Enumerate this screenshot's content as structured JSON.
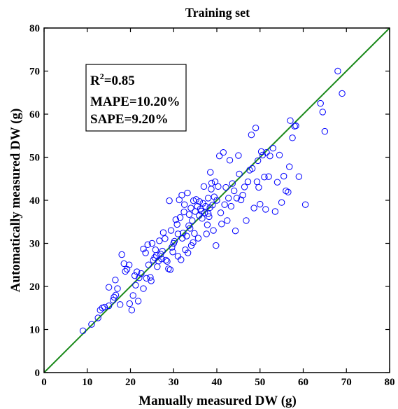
{
  "chart_data": {
    "type": "scatter",
    "title": "Training set",
    "xlabel": "Manually measured DW (g)",
    "ylabel": "Automatically measured DW (g)",
    "xlim": [
      0,
      80
    ],
    "ylim": [
      0,
      80
    ],
    "xticks": [
      "0",
      "10",
      "20",
      "30",
      "40",
      "50",
      "60",
      "70",
      "80"
    ],
    "yticks": [
      "0",
      "10",
      "20",
      "30",
      "40",
      "50",
      "60",
      "70",
      "80"
    ],
    "grid": false,
    "annotations": {
      "r2_prefix": "R",
      "r2_sup": "2",
      "r2_value": "=0.85",
      "mape": "MAPE=10.20%",
      "sape": "SAPE=9.20%"
    },
    "reference_line": {
      "x": [
        0,
        80
      ],
      "y": [
        0,
        80
      ]
    },
    "series": [
      {
        "marker": "circle",
        "points": [
          [
            9.0,
            9.7
          ],
          [
            11.0,
            11.2
          ],
          [
            12.5,
            12.7
          ],
          [
            13.0,
            14.5
          ],
          [
            13.5,
            15.0
          ],
          [
            14.0,
            15.2
          ],
          [
            15.0,
            15.5
          ],
          [
            15.0,
            19.8
          ],
          [
            16.0,
            16.8
          ],
          [
            16.2,
            17.5
          ],
          [
            16.6,
            18.0
          ],
          [
            16.5,
            21.5
          ],
          [
            17.0,
            19.5
          ],
          [
            17.6,
            15.8
          ],
          [
            18.0,
            27.4
          ],
          [
            18.5,
            25.3
          ],
          [
            18.8,
            23.5
          ],
          [
            19.2,
            24.0
          ],
          [
            19.7,
            25.0
          ],
          [
            19.8,
            16.0
          ],
          [
            20.3,
            14.5
          ],
          [
            20.6,
            17.9
          ],
          [
            21.0,
            22.5
          ],
          [
            21.5,
            23.4
          ],
          [
            21.2,
            20.3
          ],
          [
            21.8,
            16.6
          ],
          [
            22.0,
            22.0
          ],
          [
            22.5,
            23.0
          ],
          [
            23.0,
            19.5
          ],
          [
            23.0,
            28.7
          ],
          [
            23.5,
            27.8
          ],
          [
            23.7,
            21.9
          ],
          [
            24.0,
            29.7
          ],
          [
            24.2,
            25.0
          ],
          [
            24.6,
            22.1
          ],
          [
            24.8,
            21.3
          ],
          [
            25.0,
            30.0
          ],
          [
            25.3,
            26.1
          ],
          [
            25.6,
            26.7
          ],
          [
            25.8,
            28.5
          ],
          [
            26.0,
            27.2
          ],
          [
            26.2,
            24.6
          ],
          [
            26.5,
            25.9
          ],
          [
            26.7,
            30.6
          ],
          [
            27.0,
            27.5
          ],
          [
            27.2,
            26.4
          ],
          [
            27.4,
            28.2
          ],
          [
            27.6,
            32.5
          ],
          [
            28.0,
            31.1
          ],
          [
            28.2,
            26.1
          ],
          [
            28.5,
            25.8
          ],
          [
            28.8,
            24.1
          ],
          [
            29.0,
            39.9
          ],
          [
            29.2,
            23.9
          ],
          [
            29.4,
            33.0
          ],
          [
            29.6,
            29.1
          ],
          [
            29.8,
            28.0
          ],
          [
            30.0,
            30.0
          ],
          [
            30.2,
            30.5
          ],
          [
            30.5,
            35.5
          ],
          [
            30.8,
            34.4
          ],
          [
            31.0,
            32.2
          ],
          [
            31.0,
            27.0
          ],
          [
            31.3,
            40.1
          ],
          [
            31.5,
            36.0
          ],
          [
            31.7,
            26.2
          ],
          [
            31.9,
            41.2
          ],
          [
            32.0,
            31.2
          ],
          [
            32.2,
            32.4
          ],
          [
            32.4,
            37.3
          ],
          [
            32.5,
            39.0
          ],
          [
            32.7,
            28.5
          ],
          [
            33.0,
            31.7
          ],
          [
            33.2,
            41.7
          ],
          [
            33.3,
            27.8
          ],
          [
            33.5,
            34.1
          ],
          [
            33.6,
            36.7
          ],
          [
            33.8,
            33.5
          ],
          [
            34.0,
            38.2
          ],
          [
            34.1,
            29.5
          ],
          [
            34.3,
            35.3
          ],
          [
            34.5,
            30.2
          ],
          [
            34.6,
            39.9
          ],
          [
            34.8,
            32.3
          ],
          [
            35.0,
            37.4
          ],
          [
            35.2,
            40.2
          ],
          [
            35.5,
            38.6
          ],
          [
            35.7,
            31.2
          ],
          [
            35.9,
            36.5
          ],
          [
            36.0,
            39.7
          ],
          [
            36.2,
            38.0
          ],
          [
            36.4,
            37.5
          ],
          [
            36.6,
            35.8
          ],
          [
            36.8,
            39.3
          ],
          [
            37.0,
            43.2
          ],
          [
            37.2,
            37.1
          ],
          [
            37.4,
            38.6
          ],
          [
            37.6,
            32.2
          ],
          [
            37.8,
            34.3
          ],
          [
            38.0,
            40.5
          ],
          [
            38.0,
            36.9
          ],
          [
            38.2,
            36.2
          ],
          [
            38.4,
            38.3
          ],
          [
            38.5,
            46.5
          ],
          [
            38.7,
            42.6
          ],
          [
            38.8,
            44.0
          ],
          [
            39.0,
            38.9
          ],
          [
            39.2,
            33.0
          ],
          [
            39.4,
            40.8
          ],
          [
            39.6,
            44.3
          ],
          [
            39.8,
            29.5
          ],
          [
            40.0,
            40.0
          ],
          [
            40.3,
            43.2
          ],
          [
            40.6,
            50.3
          ],
          [
            40.9,
            37.1
          ],
          [
            41.1,
            34.5
          ],
          [
            41.5,
            51.1
          ],
          [
            41.8,
            39.0
          ],
          [
            42.1,
            43.0
          ],
          [
            42.4,
            35.3
          ],
          [
            42.7,
            40.5
          ],
          [
            43.0,
            49.3
          ],
          [
            43.3,
            38.6
          ],
          [
            43.6,
            43.9
          ],
          [
            44.0,
            42.2
          ],
          [
            44.3,
            32.9
          ],
          [
            44.6,
            40.5
          ],
          [
            45.0,
            50.4
          ],
          [
            45.2,
            46.1
          ],
          [
            45.6,
            40.1
          ],
          [
            46.0,
            41.2
          ],
          [
            46.4,
            43.1
          ],
          [
            46.8,
            35.3
          ],
          [
            47.2,
            44.3
          ],
          [
            47.6,
            47.0
          ],
          [
            48.0,
            55.2
          ],
          [
            48.2,
            47.4
          ],
          [
            48.6,
            38.2
          ],
          [
            49.0,
            56.8
          ],
          [
            49.3,
            44.3
          ],
          [
            49.5,
            49.2
          ],
          [
            49.7,
            43.0
          ],
          [
            50.0,
            39.1
          ],
          [
            50.3,
            51.3
          ],
          [
            50.6,
            50.5
          ],
          [
            51.0,
            45.4
          ],
          [
            51.3,
            37.9
          ],
          [
            51.5,
            51.1
          ],
          [
            52.0,
            45.5
          ],
          [
            52.3,
            50.3
          ],
          [
            53.0,
            52.1
          ],
          [
            53.5,
            37.4
          ],
          [
            54.0,
            44.2
          ],
          [
            54.5,
            50.5
          ],
          [
            55.0,
            39.5
          ],
          [
            55.5,
            45.6
          ],
          [
            56.0,
            42.2
          ],
          [
            56.5,
            41.9
          ],
          [
            56.8,
            47.8
          ],
          [
            57.0,
            58.5
          ],
          [
            57.5,
            54.5
          ],
          [
            58.0,
            57.2
          ],
          [
            58.3,
            57.3
          ],
          [
            59.0,
            45.5
          ],
          [
            60.5,
            39.0
          ],
          [
            64.0,
            62.5
          ],
          [
            64.5,
            60.5
          ],
          [
            65.0,
            56.0
          ],
          [
            68.0,
            70.0
          ],
          [
            69.0,
            64.8
          ]
        ]
      }
    ]
  }
}
